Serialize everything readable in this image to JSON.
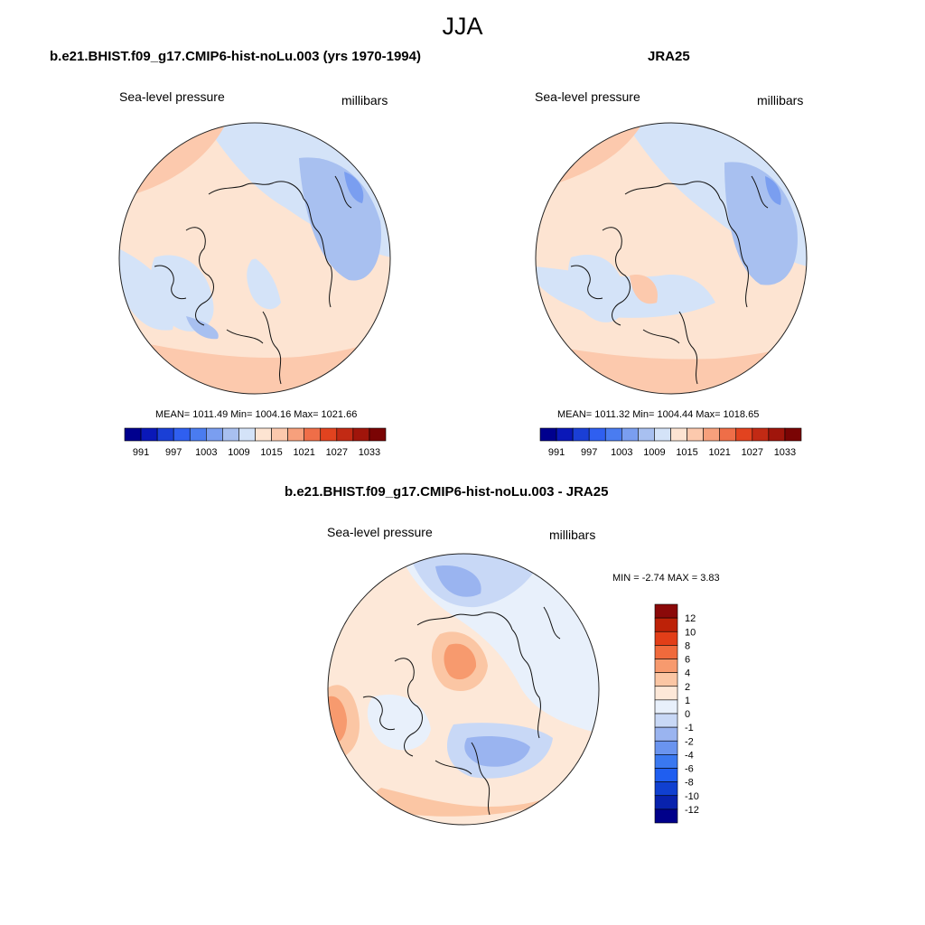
{
  "title": "JJA",
  "colors": {
    "abs_scale": [
      "#00008e",
      "#0a18b8",
      "#1a3fd6",
      "#2f5ff0",
      "#4a7cf0",
      "#7a9ef0",
      "#a8c0f0",
      "#d4e3f8",
      "#fde4d2",
      "#fcc9ad",
      "#f7a07c",
      "#ef6e48",
      "#e2431f",
      "#c22a14",
      "#a0150b",
      "#7a0404"
    ],
    "diff_scale": [
      "#00008a",
      "#0822ad",
      "#1040d0",
      "#1f5ef0",
      "#3a78f0",
      "#6a94ef",
      "#9ab4f0",
      "#c8d8f6",
      "#e8f0fb",
      "#fde8d8",
      "#fbc6a4",
      "#f79a6e",
      "#f06a3c",
      "#e23e18",
      "#bd2208",
      "#8b0909"
    ],
    "mask": "#dbe8f8"
  },
  "panels": [
    {
      "title": "b.e21.BHIST.f09_g17.CMIP6-hist-noLu.003 (yrs 1970-1994)",
      "left_label": "Sea-level pressure",
      "right_label": "millibars",
      "stats": "MEAN= 1011.49  Min= 1004.16  Max= 1021.66"
    },
    {
      "title": "JRA25",
      "left_label": "Sea-level pressure",
      "right_label": "millibars",
      "stats": "MEAN= 1011.32  Min= 1004.44  Max= 1018.65"
    },
    {
      "title": "b.e21.BHIST.f09_g17.CMIP6-hist-noLu.003 - JRA25",
      "left_label": "Sea-level pressure",
      "right_label": "millibars",
      "stats": "MIN =  -2.74 MAX =   3.83"
    }
  ],
  "abs_colorbar_labels": [
    "991",
    "997",
    "1003",
    "1009",
    "1015",
    "1021",
    "1027",
    "1033"
  ],
  "diff_colorbar_labels": [
    "12",
    "10",
    "8",
    "6",
    "4",
    "2",
    "1",
    "0",
    "-1",
    "-2",
    "-4",
    "-6",
    "-8",
    "-10",
    "-12"
  ]
}
